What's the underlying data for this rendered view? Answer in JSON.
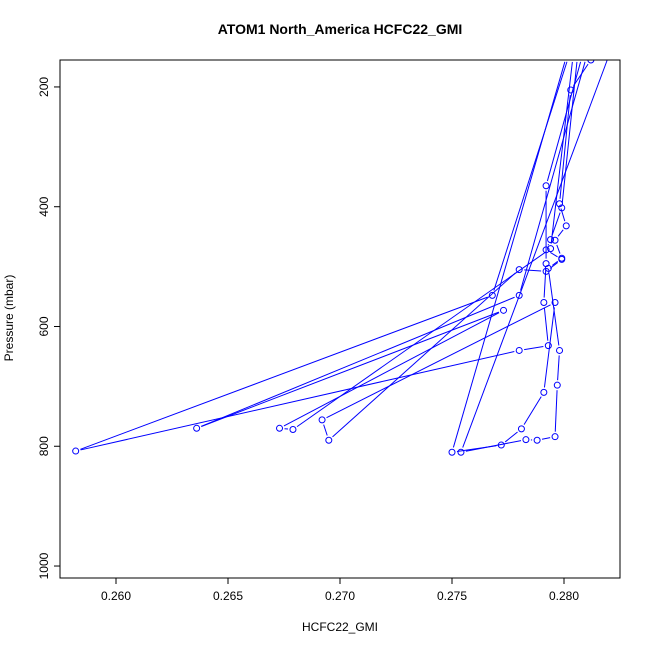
{
  "chart_data": {
    "type": "line",
    "title": "ATOM1 North_America HCFC22_GMI",
    "xlabel": "HCFC22_GMI",
    "ylabel": "Pressure (mbar)",
    "xlim": [
      0.2575,
      0.2825
    ],
    "ylim": [
      1020,
      155
    ],
    "y_reversed": true,
    "x_ticks": [
      0.26,
      0.265,
      0.27,
      0.275,
      0.28
    ],
    "x_tick_labels": [
      "0.260",
      "0.265",
      "0.270",
      "0.275",
      "0.280"
    ],
    "y_ticks": [
      200,
      400,
      600,
      800,
      1000
    ],
    "y_tick_labels": [
      "200",
      "400",
      "600",
      "800",
      "1000"
    ],
    "grid": false,
    "series": [
      {
        "color": "#0000ff",
        "marker": "circle-open",
        "points": [
          {
            "x": 0.2812,
            "y": 155
          },
          {
            "x": 0.2803,
            "y": 205
          },
          {
            "x": 0.2798,
            "y": 395
          },
          {
            "x": 0.2801,
            "y": 432
          },
          {
            "x": 0.2796,
            "y": 456
          },
          {
            "x": 0.2799,
            "y": 486
          },
          {
            "x": 0.2793,
            "y": 503
          },
          {
            "x": 0.2798,
            "y": 640
          },
          {
            "x": 0.2797,
            "y": 698
          },
          {
            "x": 0.2796,
            "y": 784
          },
          {
            "x": 0.2788,
            "y": 790
          },
          {
            "x": 0.2783,
            "y": 789
          },
          {
            "x": 0.2754,
            "y": 810
          },
          {
            "x": 0.282,
            "y": 148
          }
        ]
      },
      {
        "color": "#0000ff",
        "marker": "circle-open",
        "points": [
          {
            "x": 0.2808,
            "y": 150
          },
          {
            "x": 0.2792,
            "y": 365
          },
          {
            "x": 0.2792,
            "y": 495
          },
          {
            "x": 0.2791,
            "y": 560
          },
          {
            "x": 0.2793,
            "y": 632
          },
          {
            "x": 0.278,
            "y": 640
          },
          {
            "x": 0.2582,
            "y": 808
          },
          {
            "x": 0.2768,
            "y": 548
          },
          {
            "x": 0.2802,
            "y": 150
          }
        ]
      },
      {
        "color": "#0000ff",
        "marker": "circle-open",
        "points": [
          {
            "x": 0.2806,
            "y": 150
          },
          {
            "x": 0.2799,
            "y": 402
          },
          {
            "x": 0.2794,
            "y": 455
          },
          {
            "x": 0.2792,
            "y": 472
          },
          {
            "x": 0.2799,
            "y": 488
          },
          {
            "x": 0.2792,
            "y": 508
          },
          {
            "x": 0.278,
            "y": 505
          },
          {
            "x": 0.2695,
            "y": 790
          },
          {
            "x": 0.2692,
            "y": 756
          },
          {
            "x": 0.2796,
            "y": 560
          },
          {
            "x": 0.2791,
            "y": 710
          },
          {
            "x": 0.2781,
            "y": 771
          },
          {
            "x": 0.2772,
            "y": 798
          },
          {
            "x": 0.275,
            "y": 810
          },
          {
            "x": 0.2801,
            "y": 150
          }
        ]
      },
      {
        "color": "#0000ff",
        "marker": "circle-open",
        "points": [
          {
            "x": 0.281,
            "y": 150
          },
          {
            "x": 0.278,
            "y": 548
          },
          {
            "x": 0.2636,
            "y": 770
          },
          {
            "x": 0.2773,
            "y": 573
          },
          {
            "x": 0.2673,
            "y": 770
          },
          {
            "x": 0.2679,
            "y": 772
          },
          {
            "x": 0.2794,
            "y": 470
          },
          {
            "x": 0.2804,
            "y": 150
          }
        ]
      }
    ]
  }
}
